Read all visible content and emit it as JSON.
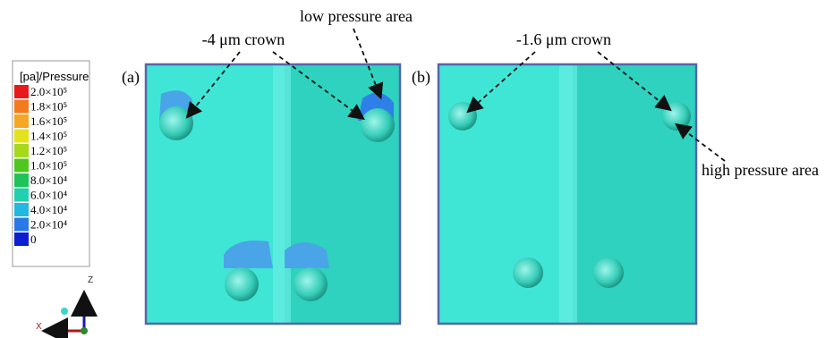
{
  "legend": {
    "title": "[pa]/Pressure",
    "labels": [
      "2.0×10⁵",
      "1.8×10⁵",
      "1.6×10⁵",
      "1.4×10⁵",
      "1.2×10⁵",
      "1.0×10⁵",
      "8.0×10⁴",
      "6.0×10⁴",
      "4.0×10⁴",
      "2.0×10⁴",
      "0"
    ]
  },
  "axes": {
    "z": "Z",
    "x": "X"
  },
  "panels": [
    {
      "label": "(a)",
      "annotations": [
        "-4 μm crown",
        "low pressure area"
      ]
    },
    {
      "label": "(b)",
      "annotations": [
        "-1.6 μm crown",
        "high pressure area"
      ]
    }
  ]
}
